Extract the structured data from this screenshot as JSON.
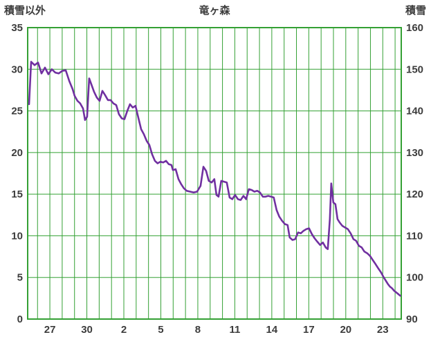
{
  "header": {
    "left_axis_title": "積雪以外",
    "chart_title": "竜ヶ森",
    "right_axis_title": "積雪"
  },
  "colors": {
    "background": "#ffffff",
    "grid": "#33a033",
    "border": "#33a033",
    "line": "#7030a0",
    "text": "#3c3c3c"
  },
  "chart_data": {
    "type": "line",
    "title": "竜ヶ森",
    "left_axis": {
      "label": "積雪以外",
      "min": 0,
      "max": 35,
      "ticks": [
        0,
        5,
        10,
        15,
        20,
        25,
        30,
        35
      ]
    },
    "right_axis": {
      "label": "積雪",
      "min": 90,
      "max": 160,
      "ticks": [
        90,
        100,
        110,
        120,
        130,
        140,
        150,
        160
      ]
    },
    "x_axis": {
      "domain": [
        0,
        30.3
      ],
      "tick_labels": [
        "27",
        "30",
        "2",
        "5",
        "8",
        "11",
        "14",
        "17",
        "20",
        "23"
      ],
      "tick_positions": [
        1.8,
        4.8,
        7.8,
        10.8,
        13.8,
        16.8,
        19.8,
        22.8,
        25.8,
        28.8
      ],
      "grid_start": 0.8,
      "grid_interval": 1
    },
    "series": [
      {
        "name": "積雪",
        "axis": "right",
        "points": [
          [
            0.11,
            141.6
          ],
          [
            0.28,
            151.8
          ],
          [
            0.56,
            151.0
          ],
          [
            0.84,
            151.6
          ],
          [
            1.12,
            149.0
          ],
          [
            1.4,
            150.4
          ],
          [
            1.68,
            148.8
          ],
          [
            1.96,
            150.0
          ],
          [
            2.24,
            149.2
          ],
          [
            2.52,
            149.0
          ],
          [
            2.8,
            149.6
          ],
          [
            3.08,
            149.8
          ],
          [
            3.37,
            147.2
          ],
          [
            3.65,
            145.2
          ],
          [
            3.81,
            143.6
          ],
          [
            4.04,
            142.4
          ],
          [
            4.26,
            141.8
          ],
          [
            4.49,
            140.6
          ],
          [
            4.65,
            137.8
          ],
          [
            4.82,
            138.6
          ],
          [
            4.99,
            147.8
          ],
          [
            5.16,
            146.4
          ],
          [
            5.38,
            144.6
          ],
          [
            5.61,
            143.2
          ],
          [
            5.83,
            142.4
          ],
          [
            6.06,
            144.8
          ],
          [
            6.28,
            143.8
          ],
          [
            6.51,
            142.6
          ],
          [
            6.73,
            142.6
          ],
          [
            6.95,
            141.8
          ],
          [
            7.18,
            141.4
          ],
          [
            7.4,
            139.2
          ],
          [
            7.63,
            138.2
          ],
          [
            7.85,
            138.0
          ],
          [
            8.08,
            140.0
          ],
          [
            8.3,
            141.6
          ],
          [
            8.52,
            140.8
          ],
          [
            8.75,
            141.2
          ],
          [
            8.97,
            138.4
          ],
          [
            9.2,
            135.6
          ],
          [
            9.42,
            134.4
          ],
          [
            9.65,
            132.8
          ],
          [
            9.87,
            131.8
          ],
          [
            10.09,
            129.6
          ],
          [
            10.32,
            128.0
          ],
          [
            10.54,
            127.4
          ],
          [
            10.77,
            127.8
          ],
          [
            10.99,
            127.6
          ],
          [
            11.22,
            128.0
          ],
          [
            11.44,
            127.2
          ],
          [
            11.66,
            127.0
          ],
          [
            11.78,
            125.8
          ],
          [
            12.0,
            126.0
          ],
          [
            12.23,
            123.6
          ],
          [
            12.45,
            122.4
          ],
          [
            12.67,
            121.4
          ],
          [
            12.9,
            120.8
          ],
          [
            13.18,
            120.6
          ],
          [
            13.46,
            120.4
          ],
          [
            13.74,
            120.6
          ],
          [
            14.02,
            122.0
          ],
          [
            14.25,
            126.6
          ],
          [
            14.47,
            125.6
          ],
          [
            14.69,
            123.2
          ],
          [
            14.92,
            122.8
          ],
          [
            15.14,
            123.6
          ],
          [
            15.31,
            119.8
          ],
          [
            15.48,
            119.4
          ],
          [
            15.7,
            123.2
          ],
          [
            15.93,
            123.0
          ],
          [
            16.15,
            122.8
          ],
          [
            16.38,
            119.2
          ],
          [
            16.6,
            118.8
          ],
          [
            16.82,
            119.8
          ],
          [
            17.05,
            118.8
          ],
          [
            17.27,
            118.6
          ],
          [
            17.5,
            119.6
          ],
          [
            17.72,
            118.8
          ],
          [
            17.94,
            121.2
          ],
          [
            18.17,
            121.0
          ],
          [
            18.39,
            120.6
          ],
          [
            18.62,
            120.8
          ],
          [
            18.84,
            120.4
          ],
          [
            19.07,
            119.4
          ],
          [
            19.29,
            119.4
          ],
          [
            19.51,
            119.6
          ],
          [
            19.74,
            119.4
          ],
          [
            19.96,
            119.2
          ],
          [
            20.19,
            116.2
          ],
          [
            20.41,
            114.6
          ],
          [
            20.63,
            113.6
          ],
          [
            20.86,
            112.8
          ],
          [
            21.08,
            112.6
          ],
          [
            21.25,
            109.6
          ],
          [
            21.48,
            109.0
          ],
          [
            21.7,
            109.2
          ],
          [
            21.93,
            110.8
          ],
          [
            22.15,
            110.6
          ],
          [
            22.37,
            111.2
          ],
          [
            22.6,
            111.6
          ],
          [
            22.82,
            111.8
          ],
          [
            23.05,
            110.4
          ],
          [
            23.27,
            109.4
          ],
          [
            23.49,
            108.6
          ],
          [
            23.72,
            107.8
          ],
          [
            23.94,
            108.4
          ],
          [
            24.17,
            107.2
          ],
          [
            24.34,
            106.8
          ],
          [
            24.51,
            114.0
          ],
          [
            24.62,
            122.6
          ],
          [
            24.79,
            118.0
          ],
          [
            24.96,
            117.6
          ],
          [
            25.13,
            114.0
          ],
          [
            25.3,
            113.2
          ],
          [
            25.52,
            112.4
          ],
          [
            25.74,
            112.0
          ],
          [
            25.97,
            111.6
          ],
          [
            26.19,
            110.6
          ],
          [
            26.42,
            109.2
          ],
          [
            26.64,
            108.8
          ],
          [
            26.86,
            107.6
          ],
          [
            27.09,
            107.2
          ],
          [
            27.31,
            106.2
          ],
          [
            27.54,
            105.8
          ],
          [
            27.76,
            105.2
          ],
          [
            27.98,
            104.2
          ],
          [
            28.21,
            103.2
          ],
          [
            28.43,
            102.2
          ],
          [
            28.66,
            101.2
          ],
          [
            28.88,
            100.0
          ],
          [
            29.05,
            99.2
          ],
          [
            29.22,
            98.4
          ],
          [
            29.38,
            97.8
          ],
          [
            29.55,
            97.4
          ],
          [
            29.72,
            96.8
          ],
          [
            29.89,
            96.4
          ],
          [
            30.06,
            96.0
          ],
          [
            30.22,
            95.6
          ]
        ]
      }
    ]
  }
}
